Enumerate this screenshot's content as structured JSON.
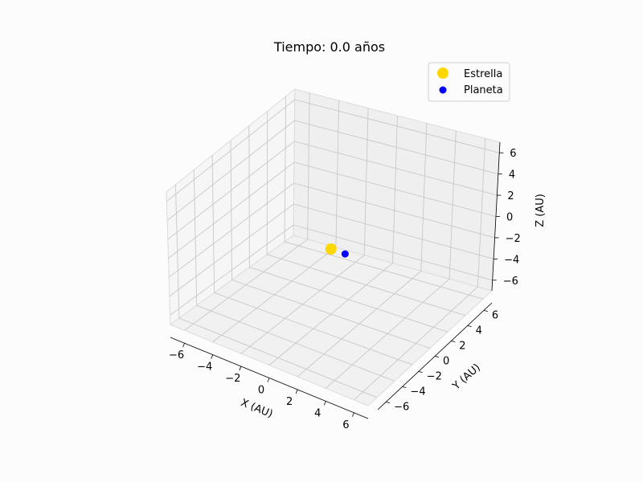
{
  "chart_data": {
    "type": "scatter",
    "projection": "3d",
    "title": "Tiempo: 0.0 años",
    "xlabel": "X (AU)",
    "ylabel": "Y (AU)",
    "zlabel": "Z (AU)",
    "xlim": [
      -7,
      7
    ],
    "ylim": [
      -7,
      7
    ],
    "zlim": [
      -7,
      7
    ],
    "xticks": [
      -6,
      -4,
      -2,
      0,
      2,
      4,
      6
    ],
    "yticks": [
      -6,
      -4,
      -2,
      0,
      2,
      4,
      6
    ],
    "zticks": [
      -6,
      -4,
      -2,
      0,
      2,
      4,
      6
    ],
    "grid": true,
    "legend_position": "top-right",
    "series": [
      {
        "name": "Estrella",
        "color": "#FFD700",
        "points": [
          {
            "x": 0,
            "y": 0,
            "z": 0
          }
        ]
      },
      {
        "name": "Planeta",
        "color": "#0000FF",
        "points": [
          {
            "x": 1,
            "y": 0,
            "z": 0
          }
        ]
      }
    ]
  }
}
